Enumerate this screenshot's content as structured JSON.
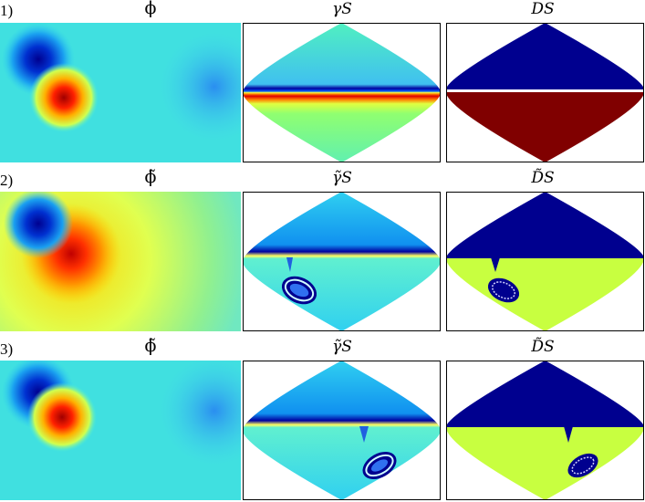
{
  "rows": [
    {
      "label": "1)",
      "phi_title": "ϕ",
      "gamma_title": "γS",
      "d_title": "DS"
    },
    {
      "label": "2)",
      "phi_title": "ϕ̃",
      "gamma_title": "γ̃S",
      "d_title": "D̃S"
    },
    {
      "label": "3)",
      "phi_title": "ϕ̃",
      "gamma_title": "γ̃S",
      "d_title": "D̃S"
    }
  ],
  "colors": {
    "dark_blue": "#00008f",
    "dark_red": "#800000",
    "cyan": "#30d0f0",
    "light_green": "#c8ff40",
    "background_field": "#40e0d0"
  }
}
